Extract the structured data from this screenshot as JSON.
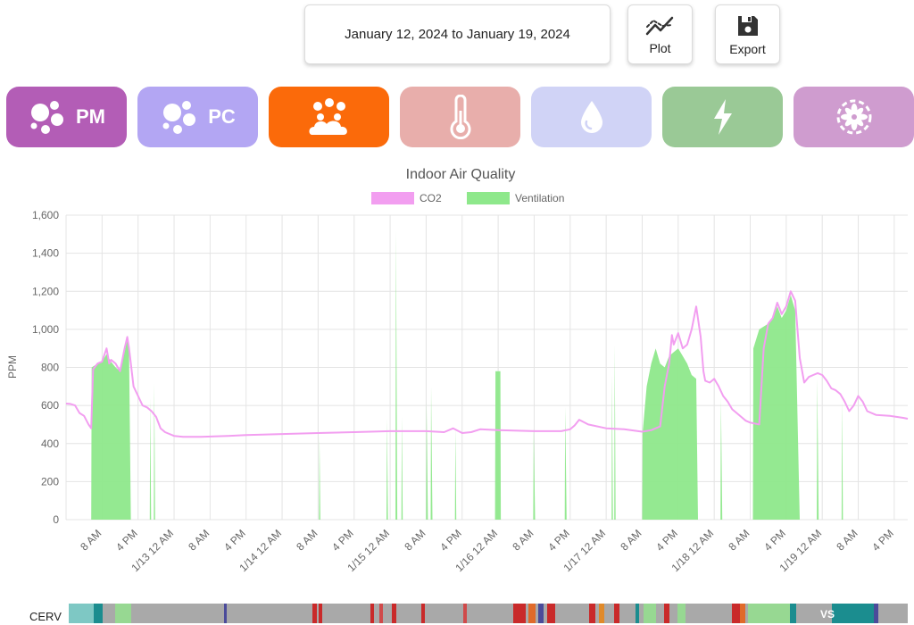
{
  "header": {
    "date_range": "January 12, 2024 to January 19, 2024",
    "plot_label": "Plot",
    "export_label": "Export"
  },
  "categories": [
    {
      "id": "pm",
      "label": "PM",
      "icon": "particles-icon",
      "color": "#b35db6"
    },
    {
      "id": "pc",
      "label": "PC",
      "icon": "particles-icon",
      "color": "#b3a6f3"
    },
    {
      "id": "iaq",
      "label": "",
      "icon": "cloud-bubbles-icon",
      "color": "#fb6a0a"
    },
    {
      "id": "temp",
      "label": "",
      "icon": "thermometer-icon",
      "color": "#e8aeab"
    },
    {
      "id": "humidity",
      "label": "",
      "icon": "droplet-icon",
      "color": "#d0d3f6"
    },
    {
      "id": "energy",
      "label": "",
      "icon": "lightning-icon",
      "color": "#9ac996"
    },
    {
      "id": "fan",
      "label": "",
      "icon": "fan-icon",
      "color": "#cf9ccf"
    }
  ],
  "chart_data": {
    "type": "area",
    "title": "Indoor Air Quality",
    "ylabel": "PPM",
    "xlabel": "",
    "ylim": [
      0,
      1600
    ],
    "yticks": [
      "0",
      "200",
      "400",
      "600",
      "800",
      "1,000",
      "1,200",
      "1,400",
      "1,600"
    ],
    "ytick_values": [
      0,
      200,
      400,
      600,
      800,
      1000,
      1200,
      1400,
      1600
    ],
    "xlim_hours": [
      0,
      187
    ],
    "x_hours_are": "hours since first timestamp on the x-axis range (Jan 12, ~00:00)",
    "xticks": [
      {
        "label": "8 AM",
        "hour": 8
      },
      {
        "label": "4 PM",
        "hour": 16
      },
      {
        "label": "1/13 12 AM",
        "hour": 24
      },
      {
        "label": "8 AM",
        "hour": 32
      },
      {
        "label": "4 PM",
        "hour": 40
      },
      {
        "label": "1/14 12 AM",
        "hour": 48
      },
      {
        "label": "8 AM",
        "hour": 56
      },
      {
        "label": "4 PM",
        "hour": 64
      },
      {
        "label": "1/15 12 AM",
        "hour": 72
      },
      {
        "label": "8 AM",
        "hour": 80
      },
      {
        "label": "4 PM",
        "hour": 88
      },
      {
        "label": "1/16 12 AM",
        "hour": 96
      },
      {
        "label": "8 AM",
        "hour": 104
      },
      {
        "label": "4 PM",
        "hour": 112
      },
      {
        "label": "1/17 12 AM",
        "hour": 120
      },
      {
        "label": "8 AM",
        "hour": 128
      },
      {
        "label": "4 PM",
        "hour": 136
      },
      {
        "label": "1/18 12 AM",
        "hour": 144
      },
      {
        "label": "8 AM",
        "hour": 152
      },
      {
        "label": "4 PM",
        "hour": 160
      },
      {
        "label": "1/19 12 AM",
        "hour": 168
      },
      {
        "label": "8 AM",
        "hour": 176
      },
      {
        "label": "4 PM",
        "hour": 184
      }
    ],
    "legend": {
      "placement": "top-center"
    },
    "grid": true,
    "series": [
      {
        "name": "CO2",
        "color": "#f29ef0",
        "points": [
          [
            0,
            610
          ],
          [
            1,
            608
          ],
          [
            2,
            600
          ],
          [
            3,
            560
          ],
          [
            4,
            545
          ],
          [
            5,
            500
          ],
          [
            5.6,
            480
          ],
          [
            6,
            790
          ],
          [
            7,
            820
          ],
          [
            8,
            830
          ],
          [
            9,
            900
          ],
          [
            9.6,
            820
          ],
          [
            10,
            840
          ],
          [
            11,
            820
          ],
          [
            12,
            780
          ],
          [
            13,
            900
          ],
          [
            13.6,
            960
          ],
          [
            14,
            900
          ],
          [
            15,
            700
          ],
          [
            16,
            650
          ],
          [
            17,
            600
          ],
          [
            18,
            590
          ],
          [
            19,
            570
          ],
          [
            20,
            540
          ],
          [
            21,
            480
          ],
          [
            22,
            460
          ],
          [
            24,
            440
          ],
          [
            26,
            435
          ],
          [
            30,
            435
          ],
          [
            36,
            440
          ],
          [
            40,
            445
          ],
          [
            48,
            450
          ],
          [
            56,
            455
          ],
          [
            64,
            460
          ],
          [
            72,
            465
          ],
          [
            80,
            465
          ],
          [
            84,
            460
          ],
          [
            86,
            480
          ],
          [
            88,
            455
          ],
          [
            90,
            460
          ],
          [
            92,
            475
          ],
          [
            96,
            470
          ],
          [
            104,
            465
          ],
          [
            110,
            465
          ],
          [
            112,
            475
          ],
          [
            113,
            495
          ],
          [
            114,
            525
          ],
          [
            116,
            500
          ],
          [
            120,
            480
          ],
          [
            124,
            475
          ],
          [
            128,
            462
          ],
          [
            130,
            470
          ],
          [
            131,
            480
          ],
          [
            132,
            490
          ],
          [
            133,
            700
          ],
          [
            134,
            820
          ],
          [
            134.6,
            970
          ],
          [
            135,
            920
          ],
          [
            136,
            980
          ],
          [
            137,
            900
          ],
          [
            138,
            920
          ],
          [
            139,
            1000
          ],
          [
            140,
            1120
          ],
          [
            141,
            960
          ],
          [
            141.6,
            780
          ],
          [
            142,
            730
          ],
          [
            143,
            720
          ],
          [
            144,
            740
          ],
          [
            145,
            700
          ],
          [
            146,
            650
          ],
          [
            147,
            620
          ],
          [
            148,
            580
          ],
          [
            149,
            560
          ],
          [
            150,
            540
          ],
          [
            151,
            520
          ],
          [
            152,
            510
          ],
          [
            154,
            500
          ],
          [
            155,
            900
          ],
          [
            156,
            1030
          ],
          [
            157,
            1060
          ],
          [
            158,
            1140
          ],
          [
            159,
            1080
          ],
          [
            160,
            1120
          ],
          [
            161,
            1200
          ],
          [
            162,
            1150
          ],
          [
            163,
            850
          ],
          [
            164,
            720
          ],
          [
            165,
            750
          ],
          [
            166,
            760
          ],
          [
            167,
            770
          ],
          [
            168,
            760
          ],
          [
            169,
            730
          ],
          [
            170,
            690
          ],
          [
            171,
            680
          ],
          [
            172,
            660
          ],
          [
            173,
            620
          ],
          [
            174,
            570
          ],
          [
            175,
            600
          ],
          [
            176,
            650
          ],
          [
            177,
            620
          ],
          [
            178,
            570
          ],
          [
            180,
            550
          ],
          [
            183,
            545
          ],
          [
            186,
            535
          ],
          [
            187,
            530
          ]
        ]
      },
      {
        "name": "Ventilation",
        "color": "#8ee88b",
        "points": [
          [
            0,
            0
          ],
          [
            5.6,
            0
          ],
          [
            5.7,
            800
          ],
          [
            7,
            820
          ],
          [
            8,
            830
          ],
          [
            9,
            870
          ],
          [
            10,
            830
          ],
          [
            11,
            800
          ],
          [
            12,
            780
          ],
          [
            13,
            880
          ],
          [
            13.6,
            950
          ],
          [
            14,
            880
          ],
          [
            14.4,
            0
          ],
          [
            18.6,
            0
          ],
          [
            18.7,
            640
          ],
          [
            18.9,
            0
          ],
          [
            19.5,
            0
          ],
          [
            19.6,
            720
          ],
          [
            19.8,
            0
          ],
          [
            56.2,
            0
          ],
          [
            56.3,
            440
          ],
          [
            56.5,
            0
          ],
          [
            71.2,
            0
          ],
          [
            71.3,
            530
          ],
          [
            71.5,
            0
          ],
          [
            73.2,
            0
          ],
          [
            73.3,
            1520
          ],
          [
            73.6,
            0
          ],
          [
            74.5,
            0
          ],
          [
            74.6,
            540
          ],
          [
            74.8,
            0
          ],
          [
            80,
            0
          ],
          [
            80.1,
            620
          ],
          [
            80.4,
            0
          ],
          [
            81,
            0
          ],
          [
            81.1,
            700
          ],
          [
            81.4,
            0
          ],
          [
            86.4,
            0
          ],
          [
            86.5,
            480
          ],
          [
            86.7,
            0
          ],
          [
            95.3,
            0
          ],
          [
            95.4,
            780
          ],
          [
            96.5,
            780
          ],
          [
            96.6,
            0
          ],
          [
            103.8,
            0
          ],
          [
            103.9,
            480
          ],
          [
            104.2,
            0
          ],
          [
            110.8,
            0
          ],
          [
            110.9,
            590
          ],
          [
            111.2,
            0
          ],
          [
            121.2,
            0
          ],
          [
            121.3,
            760
          ],
          [
            121.5,
            0
          ],
          [
            121.8,
            0
          ],
          [
            121.9,
            920
          ],
          [
            122.1,
            0
          ],
          [
            128,
            0
          ],
          [
            128.1,
            460
          ],
          [
            129,
            700
          ],
          [
            130,
            820
          ],
          [
            131,
            900
          ],
          [
            132,
            820
          ],
          [
            133,
            800
          ],
          [
            134,
            860
          ],
          [
            135,
            880
          ],
          [
            136,
            900
          ],
          [
            137,
            860
          ],
          [
            138,
            820
          ],
          [
            139,
            760
          ],
          [
            140,
            740
          ],
          [
            140.4,
            0
          ],
          [
            145.4,
            0
          ],
          [
            145.5,
            640
          ],
          [
            145.8,
            0
          ],
          [
            152.6,
            0
          ],
          [
            152.7,
            900
          ],
          [
            154,
            1000
          ],
          [
            156,
            1030
          ],
          [
            157,
            1060
          ],
          [
            158,
            1120
          ],
          [
            159,
            1060
          ],
          [
            160,
            1100
          ],
          [
            161,
            1180
          ],
          [
            162,
            1100
          ],
          [
            163,
            0
          ],
          [
            166.8,
            0
          ],
          [
            166.9,
            740
          ],
          [
            167.2,
            0
          ],
          [
            172.3,
            0
          ],
          [
            172.4,
            630
          ],
          [
            172.6,
            0
          ],
          [
            187,
            0
          ]
        ]
      }
    ]
  },
  "status_strip": {
    "label": "CERV",
    "tag": "VS",
    "segments": [
      {
        "start": 0.0,
        "end": 0.03,
        "color": "#7ec8c4"
      },
      {
        "start": 0.03,
        "end": 0.04,
        "color": "#1b8d8f"
      },
      {
        "start": 0.04,
        "end": 0.055,
        "color": "#a9a9a9"
      },
      {
        "start": 0.055,
        "end": 0.075,
        "color": "#97d892"
      },
      {
        "start": 0.075,
        "end": 0.085,
        "color": "#a9a9a9"
      },
      {
        "start": 0.185,
        "end": 0.188,
        "color": "#4b4b9a"
      },
      {
        "start": 0.29,
        "end": 0.296,
        "color": "#c92a2a"
      },
      {
        "start": 0.298,
        "end": 0.302,
        "color": "#c92a2a"
      },
      {
        "start": 0.36,
        "end": 0.364,
        "color": "#c92a2a"
      },
      {
        "start": 0.37,
        "end": 0.374,
        "color": "#d04a4a"
      },
      {
        "start": 0.385,
        "end": 0.39,
        "color": "#c92a2a"
      },
      {
        "start": 0.42,
        "end": 0.424,
        "color": "#c92a2a"
      },
      {
        "start": 0.47,
        "end": 0.474,
        "color": "#d04a4a"
      },
      {
        "start": 0.53,
        "end": 0.545,
        "color": "#c92a2a"
      },
      {
        "start": 0.548,
        "end": 0.556,
        "color": "#e06a2a"
      },
      {
        "start": 0.56,
        "end": 0.566,
        "color": "#4b4b9a"
      },
      {
        "start": 0.57,
        "end": 0.58,
        "color": "#c92a2a"
      },
      {
        "start": 0.62,
        "end": 0.628,
        "color": "#c92a2a"
      },
      {
        "start": 0.632,
        "end": 0.638,
        "color": "#e08a2a"
      },
      {
        "start": 0.65,
        "end": 0.656,
        "color": "#c92a2a"
      },
      {
        "start": 0.675,
        "end": 0.68,
        "color": "#1b8d8f"
      },
      {
        "start": 0.685,
        "end": 0.7,
        "color": "#97d892"
      },
      {
        "start": 0.71,
        "end": 0.716,
        "color": "#c92a2a"
      },
      {
        "start": 0.725,
        "end": 0.735,
        "color": "#97d892"
      },
      {
        "start": 0.79,
        "end": 0.8,
        "color": "#c92a2a"
      },
      {
        "start": 0.8,
        "end": 0.806,
        "color": "#e06a2a"
      },
      {
        "start": 0.81,
        "end": 0.82,
        "color": "#97d892"
      },
      {
        "start": 0.82,
        "end": 0.86,
        "color": "#97d892"
      },
      {
        "start": 0.86,
        "end": 0.867,
        "color": "#1b8d8f"
      },
      {
        "start": 0.91,
        "end": 0.96,
        "color": "#1b8d8f"
      },
      {
        "start": 0.96,
        "end": 0.965,
        "color": "#4b4b9a"
      }
    ]
  }
}
